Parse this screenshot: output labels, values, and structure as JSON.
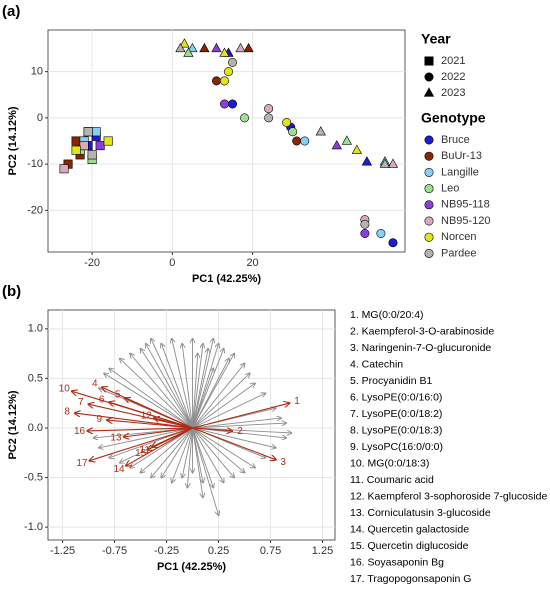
{
  "chart_data": [
    {
      "type": "scatter",
      "panel_label": "(a)",
      "x_label": "PC1 (42.25%)",
      "y_label": "PC2 (14.12%)",
      "xlim": [
        -31,
        58
      ],
      "ylim": [
        -29,
        19
      ],
      "xticks": [
        -20,
        0,
        20
      ],
      "yticks": [
        -20,
        -10,
        0,
        10
      ],
      "grid": true,
      "year_legend_title": "Year",
      "genotype_legend_title": "Genotype",
      "years": [
        {
          "name": "2021",
          "marker": "square"
        },
        {
          "name": "2022",
          "marker": "circle"
        },
        {
          "name": "2023",
          "marker": "triangle"
        }
      ],
      "series": [
        {
          "name": "Bruce",
          "color": "#1c1cd6",
          "x": [
            -21,
            -19,
            14,
            48.5,
            15,
            55,
            29.5
          ],
          "values": [
            -6,
            -4,
            14,
            -9.5,
            3,
            -27,
            -2
          ],
          "year": [
            "2021",
            "2021",
            "2023",
            "2023",
            "2022",
            "2022",
            "2022"
          ]
        },
        {
          "name": "BuUr-13",
          "color": "#8b2500",
          "x": [
            -26,
            -24,
            -23,
            8,
            19,
            11,
            31
          ],
          "values": [
            -10,
            -5,
            -8,
            15,
            15,
            8,
            -5
          ],
          "year": [
            "2021",
            "2021",
            "2021",
            "2023",
            "2023",
            "2022",
            "2022"
          ]
        },
        {
          "name": "Langille",
          "color": "#87cefa",
          "x": [
            -22,
            -19,
            5,
            53,
            33,
            52
          ],
          "values": [
            -5,
            -3,
            15,
            -9.5,
            -5,
            -25
          ],
          "year": [
            "2021",
            "2021",
            "2023",
            "2023",
            "2022",
            "2022"
          ]
        },
        {
          "name": "Leo",
          "color": "#9be08a",
          "x": [
            -23,
            -20,
            4,
            43.5,
            18,
            30
          ],
          "values": [
            -7,
            -9,
            14,
            -5,
            0,
            -3
          ],
          "year": [
            "2021",
            "2021",
            "2023",
            "2023",
            "2022",
            "2022"
          ]
        },
        {
          "name": "NB95-118",
          "color": "#8a3ee0",
          "x": [
            -21,
            -18,
            11,
            41,
            13,
            48
          ],
          "values": [
            -3,
            -6,
            15,
            -6,
            3,
            -25
          ],
          "year": [
            "2021",
            "2021",
            "2023",
            "2023",
            "2022",
            "2022"
          ]
        },
        {
          "name": "NB95-120",
          "color": "#d9aab7",
          "x": [
            -27,
            -22,
            17,
            55,
            24,
            48
          ],
          "values": [
            -11,
            -6,
            15,
            -10,
            2,
            -22
          ],
          "year": [
            "2021",
            "2021",
            "2023",
            "2023",
            "2022",
            "2022"
          ]
        },
        {
          "name": "Norcen",
          "color": "#e3e31a",
          "x": [
            -16,
            -24,
            3,
            13,
            46,
            13,
            14,
            28.5
          ],
          "values": [
            -5,
            -7,
            16,
            14,
            -7,
            8,
            10,
            -1
          ],
          "year": [
            "2021",
            "2021",
            "2023",
            "2023",
            "2023",
            "2022",
            "2022",
            "2022"
          ]
        },
        {
          "name": "Pardee",
          "color": "#b3b3b3",
          "x": [
            -20,
            -21,
            2,
            37,
            53,
            15,
            24,
            48
          ],
          "values": [
            -8,
            -3,
            15,
            -3,
            -10,
            12,
            0,
            -23
          ],
          "year": [
            "2021",
            "2021",
            "2023",
            "2023",
            "2023",
            "2022",
            "2022",
            "2022"
          ]
        }
      ]
    },
    {
      "type": "biplot",
      "panel_label": "(b)",
      "x_label": "PC1 (42.25%)",
      "y_label": "PC2 (14.12%)",
      "xlim": [
        -1.39,
        1.37
      ],
      "ylim": [
        -1.13,
        1.19
      ],
      "xticks": [
        -1.25,
        -0.75,
        -0.25,
        0.25,
        0.75,
        1.25
      ],
      "yticks": [
        {
          "value": -1,
          "label": "-1.0"
        },
        {
          "value": -0.5,
          "label": "-0.5"
        },
        {
          "value": 0,
          "label": "0.0"
        },
        {
          "value": 0.5,
          "label": "0.5"
        },
        {
          "value": 1,
          "label": "1.0"
        }
      ],
      "grid": true,
      "loadings": {
        "color": "#8c8c8c",
        "x": [
          -0.9,
          -0.85,
          -0.8,
          -0.7,
          -0.6,
          -0.5,
          -0.45,
          -0.4,
          -0.3,
          -0.2,
          -0.1,
          0,
          0.05,
          0.1,
          0.15,
          0.2,
          0.25,
          0.3,
          0.35,
          0.4,
          0.5,
          0.55,
          0.6,
          0.7,
          0.8,
          0.85,
          0.9,
          0.95,
          -0.95,
          -0.9,
          -0.8,
          -0.7,
          -0.6,
          -0.5,
          -0.4,
          -0.3,
          -0.2,
          -0.1,
          0,
          0.1,
          0.2,
          0.3,
          0.4,
          0.5,
          0.6,
          0.7,
          0.8,
          0.9,
          0.25,
          0.1,
          -0.05,
          0.2
        ],
        "values": [
          0.4,
          0.55,
          0.6,
          0.7,
          0.75,
          0.8,
          0.85,
          0.9,
          0.85,
          0.9,
          0.85,
          0.9,
          0.75,
          0.85,
          0.8,
          0.9,
          0.85,
          0.8,
          0.7,
          0.75,
          0.65,
          0.55,
          0.45,
          0.35,
          0.2,
          0.1,
          0.05,
          -0.05,
          -0.1,
          -0.2,
          -0.3,
          -0.35,
          -0.4,
          -0.45,
          -0.5,
          -0.5,
          -0.55,
          -0.5,
          -0.45,
          -0.55,
          -0.6,
          -0.55,
          -0.5,
          -0.45,
          -0.4,
          -0.3,
          -0.2,
          -0.1,
          -0.88,
          -0.7,
          -0.6,
          0.6
        ]
      },
      "highlighted": {
        "color": "#b22a12",
        "labels": [
          "1",
          "2",
          "3",
          "4",
          "5",
          "6",
          "7",
          "8",
          "9",
          "10",
          "11",
          "12",
          "13",
          "14",
          "15",
          "16",
          "17"
        ],
        "x": [
          0.93,
          0.38,
          0.8,
          -0.87,
          -0.65,
          -0.8,
          -1.0,
          -1.13,
          -0.82,
          -1.16,
          -0.39,
          -0.37,
          -0.66,
          -0.64,
          -0.43,
          -1.01,
          -0.99
        ],
        "values": [
          0.25,
          -0.03,
          -0.32,
          0.41,
          0.3,
          0.26,
          0.24,
          0.15,
          0.08,
          0.37,
          -0.19,
          0.1,
          -0.09,
          -0.38,
          -0.22,
          -0.03,
          -0.33
        ]
      },
      "legend": [
        "1. MG(0:0/20:4)",
        "2. Kaempferol-3-O-arabinoside",
        "3. Naringenin-7-O-glucuronide",
        "4. Catechin",
        "5. Procyanidin B1",
        "6. LysoPE(0:0/16:0)",
        "7. LysoPE(0:0/18:2)",
        "8. LysoPE(0:0/18:3)",
        "9. LysoPC(16:0/0:0)",
        "10. MG(0:0/18:3)",
        "11. Coumaric acid",
        "12. Kaempferol 3-sophoroside 7-glucoside",
        "13. Corniculatusin 3-glucoside",
        "14. Quercetin galactoside",
        "15. Quercetin diglucoside",
        "16. Soyasaponin Bg",
        "17. Tragopogonsaponin G"
      ]
    }
  ]
}
